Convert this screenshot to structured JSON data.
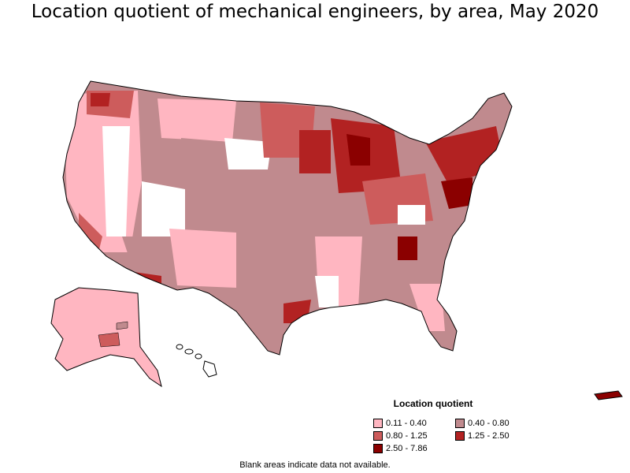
{
  "title": "Location quotient of mechanical engineers, by area, May 2020",
  "legend": {
    "title": "Location quotient",
    "items": [
      {
        "label": "0.11 - 0.40",
        "color": "#ffb6c1"
      },
      {
        "label": "0.40 - 0.80",
        "color": "#c08a8e"
      },
      {
        "label": "0.80 - 1.25",
        "color": "#cd5c5c"
      },
      {
        "label": "1.25 - 2.50",
        "color": "#b22222"
      },
      {
        "label": "2.50 - 7.86",
        "color": "#8b0000"
      }
    ]
  },
  "footnote": "Blank areas indicate data not available."
}
